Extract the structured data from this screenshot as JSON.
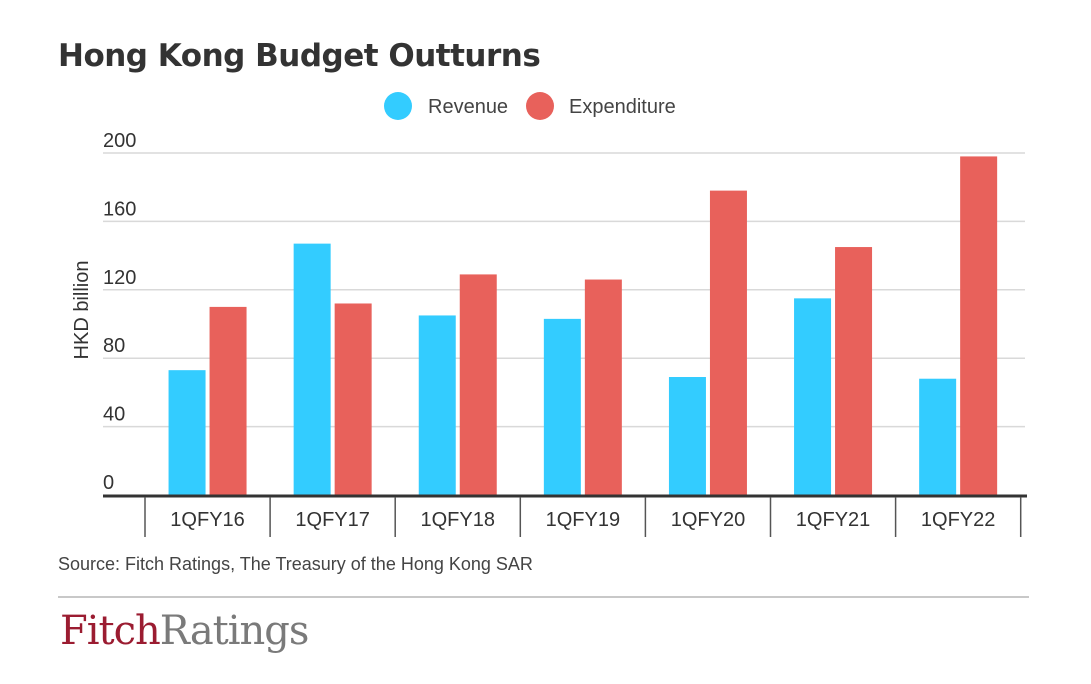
{
  "chart_data": {
    "type": "bar",
    "title": "Hong Kong Budget Outturns",
    "ylabel": "HKD billion",
    "xlabel": "",
    "ylim": [
      0,
      200
    ],
    "yticks": [
      0,
      40,
      80,
      120,
      160,
      200
    ],
    "categories": [
      "1QFY16",
      "1QFY17",
      "1QFY18",
      "1QFY19",
      "1QFY20",
      "1QFY21",
      "1QFY22"
    ],
    "series": [
      {
        "name": "Revenue",
        "color": "#33ccff",
        "values": [
          73,
          147,
          105,
          103,
          69,
          115,
          68
        ]
      },
      {
        "name": "Expenditure",
        "color": "#e8615b",
        "values": [
          110,
          112,
          129,
          126,
          178,
          145,
          198
        ]
      }
    ],
    "grid": true,
    "legend": "top-center"
  },
  "source": "Source: Fitch Ratings, The Treasury of the Hong Kong SAR",
  "logo": {
    "part1": "Fitch",
    "part2": "Ratings"
  }
}
